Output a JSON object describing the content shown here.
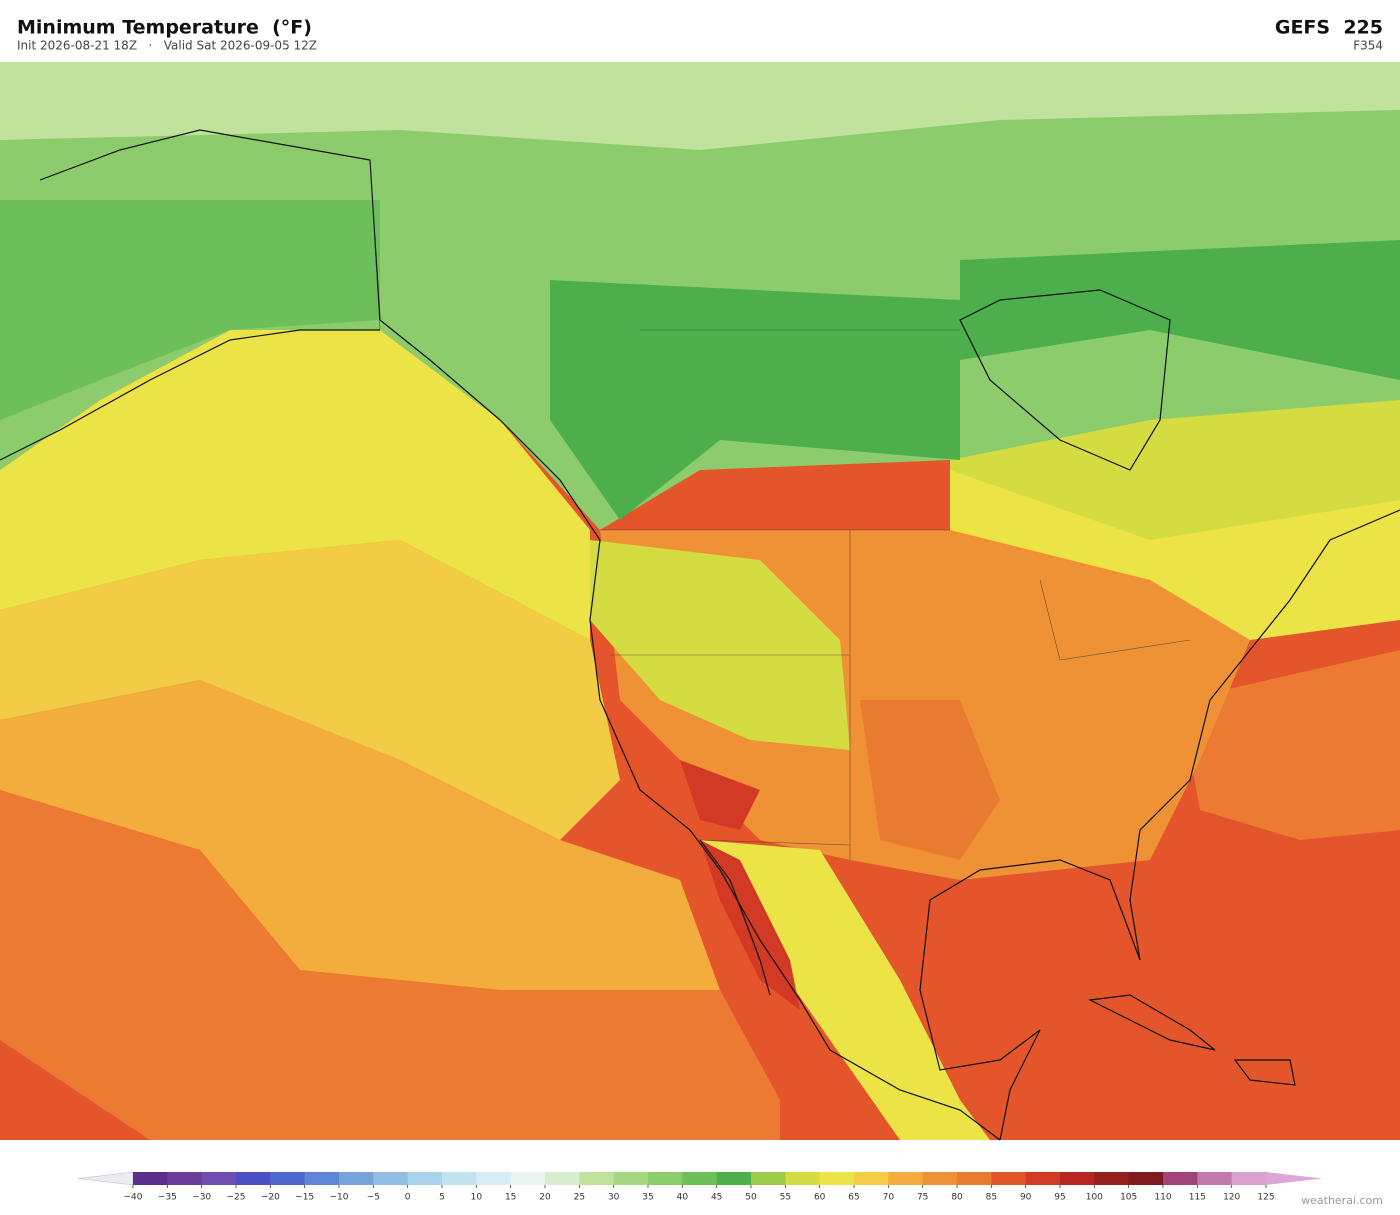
{
  "header": {
    "title": "Minimum Temperature  (°F)",
    "subtitle": "Init 2026-08-21 18Z   ·   Valid Sat 2026-09-05 12Z",
    "model": "GEFS  225",
    "forecast_hour": "F354"
  },
  "colorbar": {
    "ticks": [
      {
        "value": -40,
        "label": "−40"
      },
      {
        "value": -35,
        "label": "−35"
      },
      {
        "value": -30,
        "label": "−30"
      },
      {
        "value": -25,
        "label": "−25"
      },
      {
        "value": -20,
        "label": "−20"
      },
      {
        "value": -15,
        "label": "−15"
      },
      {
        "value": -10,
        "label": "−10"
      },
      {
        "value": -5,
        "label": "−5"
      },
      0,
      5,
      10,
      15,
      20,
      25,
      30,
      35,
      40,
      45,
      50,
      55,
      60,
      65,
      70,
      75,
      80,
      85,
      90,
      95,
      100,
      105,
      110,
      115,
      120,
      125
    ],
    "colors": [
      "#5b2d8e",
      "#6a3d9a",
      "#6f4fb0",
      "#4b4fc4",
      "#4f66cf",
      "#5f86d6",
      "#77a3db",
      "#93bde2",
      "#a9d3ec",
      "#c2e2f0",
      "#d9ecf3",
      "#e8f4ee",
      "#d7edcf",
      "#c0e29c",
      "#a6d67f",
      "#8ccc6c",
      "#6dbf5a",
      "#4caf4c",
      "#9ccb4a",
      "#d5dc42",
      "#ece447",
      "#f5cc45",
      "#f3ad3d",
      "#ef9236",
      "#e97a32",
      "#e4552b",
      "#d23a25",
      "#b8261f",
      "#962020",
      "#7d1a1c",
      "#a0437a",
      "#c278ac",
      "#d9a2d0"
    ],
    "under_color": "#ebebf2",
    "over_color": "#dba7d7"
  },
  "footer": {
    "credit": "weatherai.com"
  }
}
